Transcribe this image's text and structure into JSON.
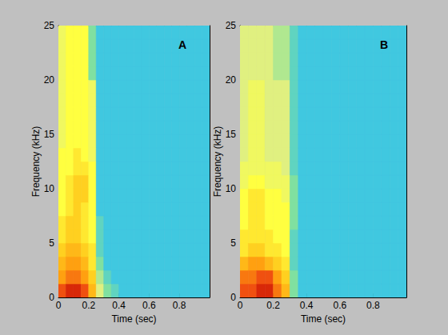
{
  "chart_data": [
    {
      "type": "heatmap",
      "annotation": "A",
      "x_label": "Time (sec)",
      "y_label": "Frequency (kHz)",
      "xlim": [
        0,
        1
      ],
      "xticks": [
        0,
        0.2,
        0.4,
        0.6,
        0.8
      ],
      "ylim": [
        0,
        25
      ],
      "yticks": [
        0,
        5,
        10,
        15,
        20,
        25
      ],
      "color_range": [
        0,
        10
      ],
      "x_edges": [
        0,
        0.05,
        0.1,
        0.15,
        0.2,
        0.25,
        0.3,
        0.35,
        0.4,
        0.45,
        0.5,
        0.55,
        0.6,
        0.65,
        0.7,
        0.75,
        0.8,
        0.85,
        0.9,
        0.95,
        1
      ],
      "y_edges": [
        0,
        1.25,
        2.5,
        3.75,
        5,
        6.25,
        7.5,
        8.75,
        10,
        11.25,
        12.5,
        13.75,
        15,
        16.25,
        17.5,
        18.75,
        20,
        21.25,
        22.5,
        23.75,
        25
      ],
      "z": [
        [
          9,
          9.5,
          9.5,
          9,
          7.5,
          5,
          4,
          3.5,
          3,
          3,
          3,
          3,
          3,
          3,
          3,
          3,
          3,
          3,
          3,
          3
        ],
        [
          8,
          8.5,
          8.5,
          8,
          7,
          4.5,
          3.5,
          3,
          3,
          3,
          3,
          3,
          3,
          3,
          3,
          3,
          3,
          3,
          3,
          3
        ],
        [
          7.5,
          8,
          8,
          7.5,
          6.5,
          4,
          3,
          3,
          3,
          3,
          3,
          3,
          3,
          3,
          3,
          3,
          3,
          3,
          3,
          3
        ],
        [
          7,
          7.5,
          7.5,
          7,
          6.5,
          3.5,
          3,
          3,
          3,
          3,
          3,
          3,
          3,
          3,
          3,
          3,
          3,
          3,
          3,
          3
        ],
        [
          6.5,
          7,
          7,
          6.5,
          6,
          3.5,
          3,
          3,
          3,
          3,
          3,
          3,
          3,
          3,
          3,
          3,
          3,
          3,
          3,
          3
        ],
        [
          6.5,
          7,
          7,
          6.5,
          6,
          3.5,
          3,
          3,
          3,
          3,
          3,
          3,
          3,
          3,
          3,
          3,
          3,
          3,
          3,
          3
        ],
        [
          6,
          6.5,
          7,
          6.5,
          6,
          3,
          3,
          3,
          3,
          3,
          3,
          3,
          3,
          3,
          3,
          3,
          3,
          3,
          3,
          3
        ],
        [
          6,
          6.5,
          7,
          7,
          6,
          3,
          3,
          3,
          3,
          3,
          3,
          3,
          3,
          3,
          3,
          3,
          3,
          3,
          3,
          3
        ],
        [
          6,
          6.5,
          7,
          7,
          6,
          3,
          3,
          3,
          3,
          3,
          3,
          3,
          3,
          3,
          3,
          3,
          3,
          3,
          3,
          3
        ],
        [
          6,
          6,
          6.5,
          6.5,
          6,
          3,
          3,
          3,
          3,
          3,
          3,
          3,
          3,
          3,
          3,
          3,
          3,
          3,
          3,
          3
        ],
        [
          6,
          6,
          6.5,
          6,
          5.5,
          3,
          3,
          3,
          3,
          3,
          3,
          3,
          3,
          3,
          3,
          3,
          3,
          3,
          3,
          3
        ],
        [
          5.5,
          6,
          6,
          6,
          5.5,
          3,
          3,
          3,
          3,
          3,
          3,
          3,
          3,
          3,
          3,
          3,
          3,
          3,
          3,
          3
        ],
        [
          5.5,
          6,
          6,
          6,
          5.5,
          3,
          3,
          3,
          3,
          3,
          3,
          3,
          3,
          3,
          3,
          3,
          3,
          3,
          3,
          3
        ],
        [
          5.5,
          6,
          6,
          6,
          5.5,
          3,
          3,
          3,
          3,
          3,
          3,
          3,
          3,
          3,
          3,
          3,
          3,
          3,
          3,
          3
        ],
        [
          5.5,
          6,
          6,
          6,
          5.5,
          3,
          3,
          3,
          3,
          3,
          3,
          3,
          3,
          3,
          3,
          3,
          3,
          3,
          3,
          3
        ],
        [
          5.5,
          6,
          6,
          6,
          5.5,
          3,
          3,
          3,
          3,
          3,
          3,
          3,
          3,
          3,
          3,
          3,
          3,
          3,
          3,
          3
        ],
        [
          5.5,
          6,
          6,
          6,
          4,
          3,
          3,
          3,
          3,
          3,
          3,
          3,
          3,
          3,
          3,
          3,
          3,
          3,
          3,
          3
        ],
        [
          5.5,
          6,
          6,
          6,
          4,
          3,
          3,
          3,
          3,
          3,
          3,
          3,
          3,
          3,
          3,
          3,
          3,
          3,
          3,
          3
        ],
        [
          5.5,
          6,
          6,
          6,
          4,
          3,
          3,
          3,
          3,
          3,
          3,
          3,
          3,
          3,
          3,
          3,
          3,
          3,
          3,
          3
        ],
        [
          5.5,
          6,
          6,
          6,
          4,
          3,
          3,
          3,
          3,
          3,
          3,
          3,
          3,
          3,
          3,
          3,
          3,
          3,
          3,
          3
        ]
      ]
    },
    {
      "type": "heatmap",
      "annotation": "B",
      "x_label": "Time (sec)",
      "y_label": "Frequency (kHz)",
      "xlim": [
        0,
        1
      ],
      "xticks": [
        0,
        0.2,
        0.4,
        0.6,
        0.8
      ],
      "ylim": [
        0,
        25
      ],
      "yticks": [
        0,
        5,
        10,
        15,
        20,
        25
      ],
      "color_range": [
        0,
        10
      ],
      "x_edges": [
        0,
        0.05,
        0.1,
        0.15,
        0.2,
        0.25,
        0.3,
        0.35,
        0.4,
        0.45,
        0.5,
        0.55,
        0.6,
        0.65,
        0.7,
        0.75,
        0.8,
        0.85,
        0.9,
        0.95,
        1
      ],
      "y_edges": [
        0,
        1.25,
        2.5,
        3.75,
        5,
        6.25,
        7.5,
        8.75,
        10,
        11.25,
        12.5,
        13.75,
        15,
        16.25,
        17.5,
        18.75,
        20,
        21.25,
        22.5,
        23.75,
        25
      ],
      "z": [
        [
          9,
          9,
          9.5,
          9.5,
          8.5,
          7.5,
          4,
          3,
          3,
          3,
          3,
          3,
          3,
          3,
          3,
          3,
          3,
          3,
          3,
          3
        ],
        [
          8.5,
          8.5,
          9,
          9,
          8,
          7,
          4,
          3,
          3,
          3,
          3,
          3,
          3,
          3,
          3,
          3,
          3,
          3,
          3,
          3
        ],
        [
          7.5,
          8,
          8,
          7.5,
          7,
          6.5,
          3.5,
          3,
          3,
          3,
          3,
          3,
          3,
          3,
          3,
          3,
          3,
          3,
          3,
          3
        ],
        [
          6.5,
          7,
          7,
          6.5,
          6.5,
          6,
          3.5,
          3,
          3,
          3,
          3,
          3,
          3,
          3,
          3,
          3,
          3,
          3,
          3,
          3
        ],
        [
          6.5,
          6.5,
          6.5,
          6.5,
          6,
          6,
          3.5,
          3,
          3,
          3,
          3,
          3,
          3,
          3,
          3,
          3,
          3,
          3,
          3,
          3
        ],
        [
          6,
          6.5,
          6.5,
          6,
          6,
          6,
          4,
          3,
          3,
          3,
          3,
          3,
          3,
          3,
          3,
          3,
          3,
          3,
          3,
          3
        ],
        [
          6,
          6.5,
          6.5,
          6,
          6,
          6,
          4,
          3,
          3,
          3,
          3,
          3,
          3,
          3,
          3,
          3,
          3,
          3,
          3,
          3
        ],
        [
          6,
          6.5,
          6.5,
          6,
          6,
          5.5,
          4,
          3,
          3,
          3,
          3,
          3,
          3,
          3,
          3,
          3,
          3,
          3,
          3,
          3
        ],
        [
          5.5,
          6,
          6,
          5.5,
          5.5,
          5.5,
          4,
          3,
          3,
          3,
          3,
          3,
          3,
          3,
          3,
          3,
          3,
          3,
          3,
          3
        ],
        [
          5.5,
          5.5,
          5.5,
          5.5,
          5.5,
          5,
          3.5,
          3,
          3,
          3,
          3,
          3,
          3,
          3,
          3,
          3,
          3,
          3,
          3,
          3
        ],
        [
          5,
          5.5,
          5.5,
          5,
          5,
          5,
          3.5,
          3,
          3,
          3,
          3,
          3,
          3,
          3,
          3,
          3,
          3,
          3,
          3,
          3
        ],
        [
          5,
          5.5,
          5.5,
          5,
          5,
          5,
          3.5,
          3,
          3,
          3,
          3,
          3,
          3,
          3,
          3,
          3,
          3,
          3,
          3,
          3
        ],
        [
          5,
          5.5,
          5.5,
          5,
          5,
          5,
          3.5,
          3,
          3,
          3,
          3,
          3,
          3,
          3,
          3,
          3,
          3,
          3,
          3,
          3
        ],
        [
          5,
          5.5,
          5.5,
          5,
          5,
          5,
          3.5,
          3,
          3,
          3,
          3,
          3,
          3,
          3,
          3,
          3,
          3,
          3,
          3,
          3
        ],
        [
          5,
          5.5,
          5.5,
          5,
          5,
          5,
          3.5,
          3,
          3,
          3,
          3,
          3,
          3,
          3,
          3,
          3,
          3,
          3,
          3,
          3
        ],
        [
          5,
          5.5,
          5.5,
          5,
          5,
          5,
          3.5,
          3,
          3,
          3,
          3,
          3,
          3,
          3,
          3,
          3,
          3,
          3,
          3,
          3
        ],
        [
          5,
          5,
          5,
          5,
          4.5,
          4.5,
          3.5,
          3,
          3,
          3,
          3,
          3,
          3,
          3,
          3,
          3,
          3,
          3,
          3,
          3
        ],
        [
          5,
          5,
          5,
          5,
          4.5,
          4.5,
          3.5,
          3,
          3,
          3,
          3,
          3,
          3,
          3,
          3,
          3,
          3,
          3,
          3,
          3
        ],
        [
          5,
          5,
          5,
          5,
          4.5,
          4.5,
          3.5,
          3,
          3,
          3,
          3,
          3,
          3,
          3,
          3,
          3,
          3,
          3,
          3,
          3
        ],
        [
          5,
          5,
          5,
          5,
          4.5,
          4.5,
          3.5,
          3,
          3,
          3,
          3,
          3,
          3,
          3,
          3,
          3,
          3,
          3,
          3,
          3
        ]
      ]
    }
  ]
}
